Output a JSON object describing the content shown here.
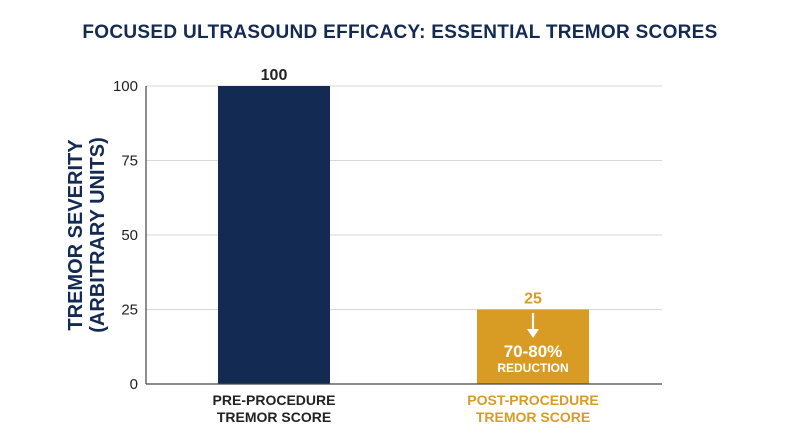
{
  "colors": {
    "navy": "#132a52",
    "gold": "#d89b24",
    "axis": "#444444",
    "grid": "#d7d7d7",
    "text": "#222222",
    "annotation_text": "#ffffff"
  },
  "chart_data": {
    "type": "bar",
    "title": "FOCUSED ULTRASOUND EFFICACY: ESSENTIAL TREMOR SCORES",
    "ylabel_lines": [
      "TREMOR SEVERITY",
      "(ARBITRARY UNITS)"
    ],
    "xlabel": "",
    "ylim": [
      0,
      100
    ],
    "yticks": [
      "0",
      "25",
      "50",
      "75",
      "100"
    ],
    "grid": true,
    "categories": [
      {
        "lines": [
          "PRE-PROCEDURE",
          "TREMOR SCORE"
        ],
        "color": "#132a52",
        "label_color": "#222222"
      },
      {
        "lines": [
          "POST-PROCEDURE",
          "TREMOR SCORE"
        ],
        "color": "#d89b24",
        "label_color": "#d89b24"
      }
    ],
    "values": [
      100,
      25
    ],
    "value_labels": [
      "100",
      "25"
    ],
    "annotation": {
      "bar_index": 1,
      "arrow": "arrow-down-icon",
      "line1": "70-80%",
      "line2": "REDUCTION"
    }
  }
}
